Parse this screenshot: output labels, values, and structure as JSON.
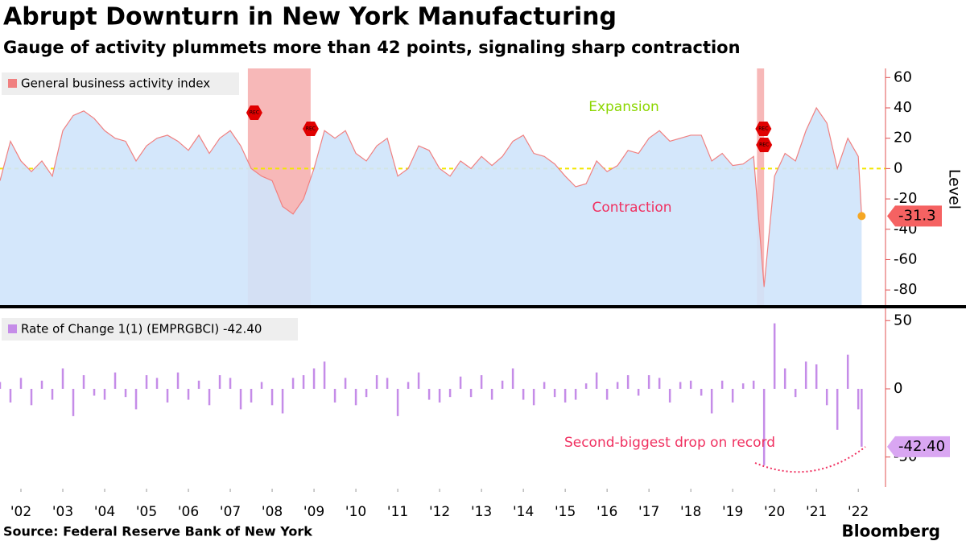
{
  "title": "Abrupt Downturn in New York Manufacturing",
  "subtitle": "Gauge of activity plummets more than 42 points, signaling sharp contraction",
  "source": "Source: Federal Reserve Bank of New York",
  "brand": "Bloomberg",
  "chart_data": [
    {
      "type": "area",
      "y_label": "Level",
      "rec_label": "REC",
      "annotations": [
        "Expansion",
        "Contraction"
      ],
      "xlim": [
        2002.0,
        2023.15
      ],
      "ylim": [
        -90,
        66
      ],
      "yticks": [
        -80,
        -60,
        -40,
        -20,
        0,
        20,
        40,
        60
      ],
      "zero_line": true,
      "shaded_periods": [
        [
          2007.92,
          2009.42
        ],
        [
          2020.08,
          2020.25
        ]
      ],
      "x": [
        2002,
        2002.25,
        2002.5,
        2002.75,
        2003,
        2003.25,
        2003.5,
        2003.75,
        2004,
        2004.25,
        2004.5,
        2004.75,
        2005,
        2005.25,
        2005.5,
        2005.75,
        2006,
        2006.25,
        2006.5,
        2006.75,
        2007,
        2007.25,
        2007.5,
        2007.75,
        2008,
        2008.25,
        2008.5,
        2008.75,
        2009,
        2009.25,
        2009.5,
        2009.75,
        2010,
        2010.25,
        2010.5,
        2010.75,
        2011,
        2011.25,
        2011.5,
        2011.75,
        2012,
        2012.25,
        2012.5,
        2012.75,
        2013,
        2013.25,
        2013.5,
        2013.75,
        2014,
        2014.25,
        2014.5,
        2014.75,
        2015,
        2015.25,
        2015.5,
        2015.75,
        2016,
        2016.25,
        2016.5,
        2016.75,
        2017,
        2017.25,
        2017.5,
        2017.75,
        2018,
        2018.25,
        2018.5,
        2018.75,
        2019,
        2019.25,
        2019.5,
        2019.75,
        2020,
        2020.25,
        2020.5,
        2020.75,
        2021,
        2021.25,
        2021.5,
        2021.75,
        2022,
        2022.25,
        2022.5,
        2022.58
      ],
      "series": [
        {
          "name": "General business activity index",
          "color": "#f08080",
          "fill": "#cfe4fb",
          "values": [
            -8,
            18,
            5,
            -2,
            5,
            -5,
            25,
            35,
            38,
            33,
            25,
            20,
            18,
            5,
            15,
            20,
            22,
            18,
            12,
            22,
            10,
            20,
            25,
            15,
            0,
            -5,
            -8,
            -25,
            -30,
            -20,
            0,
            25,
            20,
            25,
            10,
            5,
            15,
            20,
            -5,
            0,
            15,
            12,
            0,
            -5,
            5,
            0,
            8,
            2,
            8,
            18,
            22,
            10,
            8,
            3,
            -5,
            -12,
            -10,
            5,
            -2,
            2,
            12,
            10,
            20,
            25,
            18,
            20,
            22,
            22,
            5,
            10,
            2,
            3,
            8,
            -78,
            -5,
            10,
            5,
            25,
            40,
            30,
            0,
            20,
            8,
            -31.3
          ]
        }
      ]
    },
    {
      "type": "bar",
      "annotations": [
        "Second-biggest drop on record"
      ],
      "xlim": [
        2002.0,
        2023.15
      ],
      "ylim": [
        -72,
        59
      ],
      "yticks": [
        -50,
        0,
        50
      ],
      "xticks": [
        {
          "value": 2002.5,
          "label": "'02"
        },
        {
          "value": 2003.5,
          "label": "'03"
        },
        {
          "value": 2004.5,
          "label": "'04"
        },
        {
          "value": 2005.5,
          "label": "'05"
        },
        {
          "value": 2006.5,
          "label": "'06"
        },
        {
          "value": 2007.5,
          "label": "'07"
        },
        {
          "value": 2008.5,
          "label": "'08"
        },
        {
          "value": 2009.5,
          "label": "'09"
        },
        {
          "value": 2010.5,
          "label": "'10"
        },
        {
          "value": 2011.5,
          "label": "'11"
        },
        {
          "value": 2012.5,
          "label": "'12"
        },
        {
          "value": 2013.5,
          "label": "'13"
        },
        {
          "value": 2014.5,
          "label": "'14"
        },
        {
          "value": 2015.5,
          "label": "'15"
        },
        {
          "value": 2016.5,
          "label": "'16"
        },
        {
          "value": 2017.5,
          "label": "'17"
        },
        {
          "value": 2018.5,
          "label": "'18"
        },
        {
          "value": 2019.5,
          "label": "'19"
        },
        {
          "value": 2020.5,
          "label": "'20"
        },
        {
          "value": 2021.5,
          "label": "'21"
        },
        {
          "value": 2022.5,
          "label": "'22"
        }
      ],
      "x": [
        2002,
        2002.25,
        2002.5,
        2002.75,
        2003,
        2003.25,
        2003.5,
        2003.75,
        2004,
        2004.25,
        2004.5,
        2004.75,
        2005,
        2005.25,
        2005.5,
        2005.75,
        2006,
        2006.25,
        2006.5,
        2006.75,
        2007,
        2007.25,
        2007.5,
        2007.75,
        2008,
        2008.25,
        2008.5,
        2008.75,
        2009,
        2009.25,
        2009.5,
        2009.75,
        2010,
        2010.25,
        2010.5,
        2010.75,
        2011,
        2011.25,
        2011.5,
        2011.75,
        2012,
        2012.25,
        2012.5,
        2012.75,
        2013,
        2013.25,
        2013.5,
        2013.75,
        2014,
        2014.25,
        2014.5,
        2014.75,
        2015,
        2015.25,
        2015.5,
        2015.75,
        2016,
        2016.25,
        2016.5,
        2016.75,
        2017,
        2017.25,
        2017.5,
        2017.75,
        2018,
        2018.25,
        2018.5,
        2018.75,
        2019,
        2019.25,
        2019.5,
        2019.75,
        2020,
        2020.25,
        2020.5,
        2020.75,
        2021,
        2021.25,
        2021.5,
        2021.75,
        2022,
        2022.25,
        2022.5,
        2022.58
      ],
      "series": [
        {
          "name": "Rate of Change 1(1) (EMPRGBCI) -42.40",
          "color": "#c58ce8",
          "last_value_label": "-42.40",
          "values": [
            5,
            -10,
            8,
            -12,
            6,
            -8,
            15,
            -20,
            10,
            -5,
            -8,
            12,
            -6,
            -15,
            10,
            8,
            -10,
            12,
            -8,
            6,
            -12,
            10,
            8,
            -15,
            -10,
            5,
            -12,
            -18,
            8,
            10,
            15,
            20,
            -10,
            8,
            -12,
            -6,
            10,
            8,
            -20,
            5,
            12,
            -8,
            -10,
            -6,
            9,
            -6,
            10,
            -8,
            6,
            15,
            -8,
            -12,
            5,
            -6,
            -10,
            -8,
            4,
            12,
            -8,
            5,
            10,
            -5,
            10,
            8,
            -10,
            5,
            6,
            -5,
            -18,
            6,
            -10,
            4,
            6,
            -56,
            48,
            15,
            -6,
            20,
            18,
            -12,
            -30,
            25,
            -15,
            -42.4
          ]
        }
      ]
    }
  ]
}
